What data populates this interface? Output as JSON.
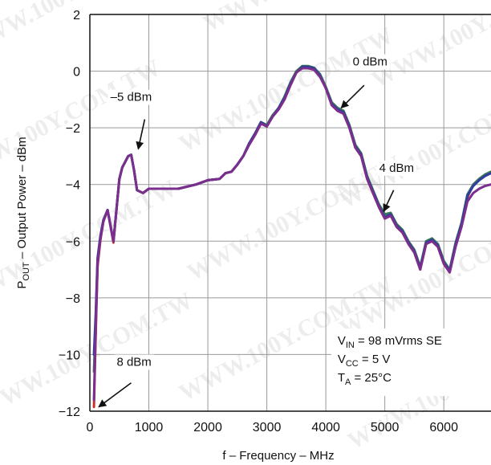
{
  "chart_data": {
    "type": "line",
    "title": "",
    "xlabel": "f – Frequency – MHz",
    "ylabel_main": "P",
    "ylabel_sub": "OUT",
    "ylabel_rest": " – Output Power – dBm",
    "xlim": [
      0,
      6800
    ],
    "ylim": [
      -12,
      2
    ],
    "xticks": [
      0,
      1000,
      2000,
      3000,
      4000,
      5000,
      6000
    ],
    "yticks": [
      2,
      0,
      -2,
      -4,
      -6,
      -8,
      -10,
      -12
    ],
    "grid": true,
    "series": [
      {
        "name": "–5 dBm",
        "color": "#7a2e8e",
        "x": [
          70,
          100,
          130,
          180,
          230,
          300,
          400,
          500,
          550,
          650,
          700,
          750,
          800,
          900,
          1000,
          1200,
          1500,
          1800,
          2000,
          2200,
          2300,
          2400,
          2500,
          2600,
          2700,
          2800,
          2900,
          3000,
          3100,
          3200,
          3300,
          3400,
          3500,
          3600,
          3700,
          3800,
          3900,
          4000,
          4100,
          4200,
          4300,
          4400,
          4500,
          4600,
          4700,
          4800,
          4900,
          5000,
          5100,
          5200,
          5300,
          5400,
          5500,
          5600,
          5700,
          5800,
          5900,
          6000,
          6100,
          6200,
          6300,
          6400,
          6500,
          6600,
          6700,
          6800
        ],
        "y": [
          -11.6,
          -9.0,
          -6.8,
          -5.9,
          -5.3,
          -4.9,
          -6.0,
          -3.8,
          -3.4,
          -3.0,
          -2.95,
          -3.5,
          -4.2,
          -4.3,
          -4.15,
          -4.15,
          -4.15,
          -4.0,
          -3.85,
          -3.8,
          -3.6,
          -3.55,
          -3.3,
          -3.0,
          -2.6,
          -2.25,
          -1.85,
          -1.95,
          -1.6,
          -1.35,
          -1.0,
          -0.5,
          -0.05,
          0.1,
          0.1,
          0.05,
          -0.2,
          -0.6,
          -1.2,
          -1.4,
          -1.5,
          -2.0,
          -2.7,
          -3.0,
          -3.8,
          -4.3,
          -4.8,
          -5.2,
          -5.1,
          -5.5,
          -5.7,
          -6.1,
          -6.4,
          -7.0,
          -6.1,
          -6.0,
          -6.2,
          -6.8,
          -7.1,
          -6.2,
          -5.5,
          -4.6,
          -4.3,
          -4.15,
          -4.05,
          -4.0
        ]
      },
      {
        "name": "0 dBm",
        "color": "#2f3d9c",
        "x": [
          70,
          100,
          130,
          180,
          230,
          300,
          400,
          500,
          550,
          650,
          700,
          750,
          800,
          900,
          1000,
          1200,
          1500,
          1800,
          2000,
          2200,
          2300,
          2400,
          2500,
          2600,
          2700,
          2800,
          2900,
          3000,
          3100,
          3200,
          3300,
          3400,
          3500,
          3600,
          3700,
          3800,
          3900,
          4000,
          4100,
          4200,
          4300,
          4400,
          4500,
          4600,
          4700,
          4800,
          4900,
          5000,
          5100,
          5200,
          5300,
          5400,
          5500,
          5600,
          5700,
          5800,
          5900,
          6000,
          6100,
          6200,
          6300,
          6400,
          6500,
          6600,
          6700,
          6800
        ],
        "y": [
          -10.0,
          -8.5,
          -6.6,
          -5.8,
          -5.25,
          -4.9,
          -6.0,
          -3.8,
          -3.4,
          -3.0,
          -2.95,
          -3.5,
          -4.2,
          -4.3,
          -4.15,
          -4.15,
          -4.15,
          -4.0,
          -3.85,
          -3.8,
          -3.6,
          -3.55,
          -3.3,
          -3.0,
          -2.55,
          -2.2,
          -1.8,
          -1.95,
          -1.6,
          -1.3,
          -0.95,
          -0.45,
          -0.05,
          0.15,
          0.15,
          0.1,
          -0.15,
          -0.6,
          -1.15,
          -1.35,
          -1.45,
          -1.95,
          -2.65,
          -2.95,
          -3.75,
          -4.25,
          -4.75,
          -5.15,
          -5.05,
          -5.45,
          -5.65,
          -6.05,
          -6.35,
          -6.95,
          -6.05,
          -5.95,
          -6.15,
          -6.75,
          -7.05,
          -6.1,
          -5.4,
          -4.4,
          -4.05,
          -3.85,
          -3.7,
          -3.6
        ]
      },
      {
        "name": "4 dBm",
        "color": "#3a7a55",
        "x": [
          70,
          100,
          130,
          180,
          230,
          300,
          400,
          500,
          550,
          650,
          700,
          750,
          800,
          900,
          1000,
          1200,
          1500,
          1800,
          2000,
          2200,
          2300,
          2400,
          2500,
          2600,
          2700,
          2800,
          2900,
          3000,
          3100,
          3200,
          3300,
          3400,
          3500,
          3600,
          3700,
          3800,
          3900,
          4000,
          4100,
          4200,
          4300,
          4400,
          4500,
          4600,
          4700,
          4800,
          4900,
          5000,
          5100,
          5200,
          5300,
          5400,
          5500,
          5600,
          5700,
          5800,
          5900,
          6000,
          6100,
          6200,
          6300,
          6400,
          6500,
          6600,
          6700,
          6800
        ],
        "y": [
          -10.6,
          -8.7,
          -6.7,
          -5.85,
          -5.25,
          -4.9,
          -6.0,
          -3.8,
          -3.4,
          -3.0,
          -2.95,
          -3.5,
          -4.2,
          -4.3,
          -4.15,
          -4.15,
          -4.15,
          -4.0,
          -3.85,
          -3.8,
          -3.6,
          -3.55,
          -3.3,
          -3.0,
          -2.55,
          -2.2,
          -1.8,
          -1.9,
          -1.55,
          -1.3,
          -0.9,
          -0.4,
          0.0,
          0.18,
          0.18,
          0.12,
          -0.1,
          -0.55,
          -1.1,
          -1.3,
          -1.4,
          -1.9,
          -2.6,
          -2.9,
          -3.7,
          -4.2,
          -4.7,
          -5.05,
          -5.0,
          -5.4,
          -5.6,
          -6.0,
          -6.3,
          -6.9,
          -6.0,
          -5.9,
          -6.1,
          -6.7,
          -7.0,
          -6.05,
          -5.35,
          -4.35,
          -4.0,
          -3.8,
          -3.65,
          -3.55
        ]
      },
      {
        "name": "8 dBm",
        "color": "#c8322c",
        "x": [
          70,
          100,
          130,
          180,
          230,
          300,
          400,
          500,
          550,
          650,
          700,
          750,
          800,
          900,
          1000,
          1200,
          1500,
          1800,
          2000,
          2200,
          2300,
          2400,
          2500,
          2600,
          2700,
          2800,
          2900,
          3000,
          3100,
          3200,
          3300,
          3400,
          3500,
          3600,
          3700,
          3800,
          3900,
          4000,
          4100,
          4200,
          4300,
          4400,
          4500,
          4600,
          4700,
          4800,
          4900,
          5000,
          5100,
          5200,
          5300,
          5400,
          5500,
          5600,
          5700,
          5800,
          5900,
          6000,
          6100,
          6200,
          6300,
          6400,
          6500,
          6600,
          6700,
          6800
        ],
        "y": [
          -11.85,
          -9.2,
          -6.9,
          -5.95,
          -5.3,
          -4.9,
          -6.05,
          -3.8,
          -3.4,
          -3.0,
          -2.95,
          -3.5,
          -4.2,
          -4.3,
          -4.15,
          -4.15,
          -4.15,
          -4.0,
          -3.85,
          -3.8,
          -3.6,
          -3.55,
          -3.3,
          -3.0,
          -2.6,
          -2.25,
          -1.85,
          -1.95,
          -1.6,
          -1.35,
          -1.0,
          -0.5,
          -0.05,
          0.12,
          0.12,
          0.08,
          -0.18,
          -0.6,
          -1.2,
          -1.4,
          -1.5,
          -2.0,
          -2.7,
          -3.0,
          -3.8,
          -4.3,
          -4.8,
          -5.2,
          -5.1,
          -5.5,
          -5.7,
          -6.1,
          -6.4,
          -7.0,
          -6.1,
          -6.0,
          -6.2,
          -6.8,
          -7.1,
          -6.15,
          -5.45,
          -4.45,
          -4.0,
          -3.8,
          -3.65,
          -3.55
        ]
      }
    ],
    "annotations": [
      {
        "label": "–5 dBm",
        "text_x": 700,
        "text_y": -1.05,
        "arrow_from": [
          930,
          -1.7
        ],
        "arrow_to": [
          820,
          -2.75
        ]
      },
      {
        "label": "0 dBm",
        "text_x": 4750,
        "text_y": 0.2,
        "arrow_from": [
          4650,
          -0.5
        ],
        "arrow_to": [
          4260,
          -1.3
        ]
      },
      {
        "label": "4 dBm",
        "text_x": 5200,
        "text_y": -3.55,
        "arrow_from": [
          5150,
          -4.2
        ],
        "arrow_to": [
          4980,
          -4.95
        ]
      },
      {
        "label": "8 dBm",
        "text_x": 750,
        "text_y": -10.4,
        "arrow_from": [
          700,
          -11.0
        ],
        "arrow_to": [
          150,
          -11.85
        ]
      }
    ],
    "conditions": [
      {
        "main": "V",
        "sub": "IN",
        "rest": " = 98 mVrms SE"
      },
      {
        "main": "V",
        "sub": "CC",
        "rest": " = 5 V"
      },
      {
        "main": "T",
        "sub": "A",
        "rest": " = 25°C"
      }
    ]
  },
  "watermark": "WWW.100Y.COM.TW"
}
